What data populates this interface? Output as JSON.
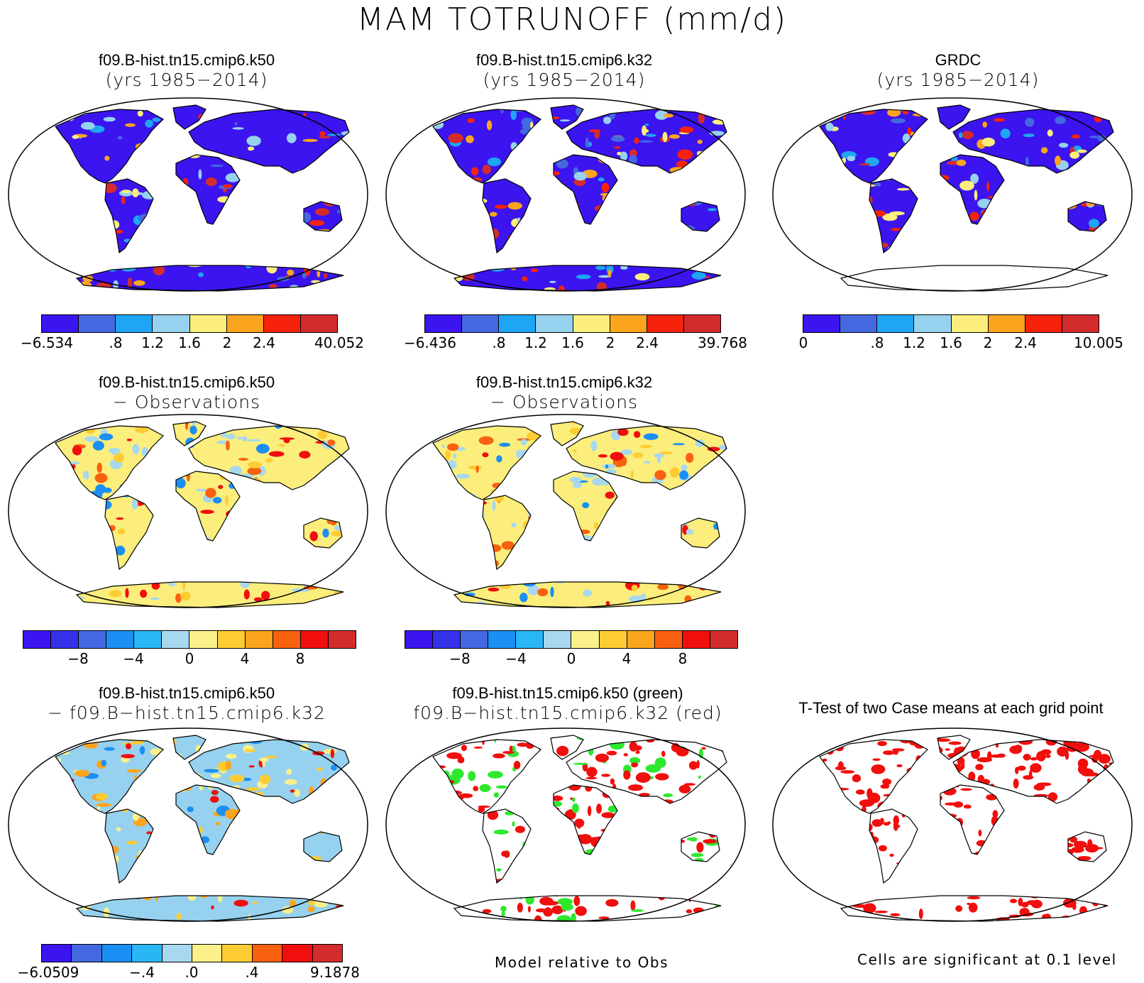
{
  "title": "MAM TOTRUNOFF (mm/d)",
  "colors": {
    "abs": [
      "#3b14f0",
      "#4368e0",
      "#1ea6f5",
      "#96d2ef",
      "#fbee7c",
      "#fba41e",
      "#f7220c",
      "#d42c2c"
    ],
    "diff": [
      "#3b14f0",
      "#3531e8",
      "#4368e0",
      "#1b8ff3",
      "#29b6f5",
      "#a8d8ef",
      "#fbf08a",
      "#fdcc33",
      "#fba41e",
      "#f8610f",
      "#f00f0c",
      "#d42c2c"
    ],
    "land": [
      "#3b14f0",
      "#fbee7c",
      "#96d2ef"
    ],
    "model_a_green": "#2ee82e",
    "model_b_red": "#f00f0c",
    "signif": "#f00f0c"
  },
  "panels": {
    "p1": {
      "line1": "f09.B-hist.tn15.cmip6.k50",
      "line2": "(yrs 1985−2014)",
      "colorbar": [
        "−6.534",
        ".8",
        "1.2",
        "1.6",
        "2",
        "2.4",
        "40.052"
      ]
    },
    "p2": {
      "line1": "f09.B-hist.tn15.cmip6.k32",
      "line2": "(yrs 1985−2014)",
      "colorbar": [
        "−6.436",
        ".8",
        "1.2",
        "1.6",
        "2",
        "2.4",
        "39.768"
      ]
    },
    "p3": {
      "line1": "GRDC",
      "line2": "(yrs 1985−2014)",
      "colorbar": [
        "0",
        ".8",
        "1.2",
        "1.6",
        "2",
        "2.4",
        "10.005"
      ]
    },
    "p4": {
      "line1": "f09.B-hist.tn15.cmip6.k50",
      "line2": "− Observations",
      "colorbar": [
        "−8",
        "−4",
        "0",
        "4",
        "8"
      ]
    },
    "p5": {
      "line1": "f09.B-hist.tn15.cmip6.k32",
      "line2": "− Observations",
      "colorbar": [
        "−8",
        "−4",
        "0",
        "4",
        "8"
      ]
    },
    "p6": {
      "line1": "f09.B-hist.tn15.cmip6.k50",
      "line2": "− f09.B−hist.tn15.cmip6.k32",
      "colorbar": [
        "−6.0509",
        "−.4",
        ".0",
        ".4",
        "9.1878"
      ]
    },
    "p7": {
      "line1": "f09.B-hist.tn15.cmip6.k50 (green)",
      "line2": "f09.B−hist.tn15.cmip6.k32 (red)"
    },
    "p8": {
      "line1": "T-Test of two Case means at each grid point"
    }
  },
  "footers": {
    "model_relative": "Model relative to Obs",
    "significance": "Cells are significant at 0.1 level"
  }
}
